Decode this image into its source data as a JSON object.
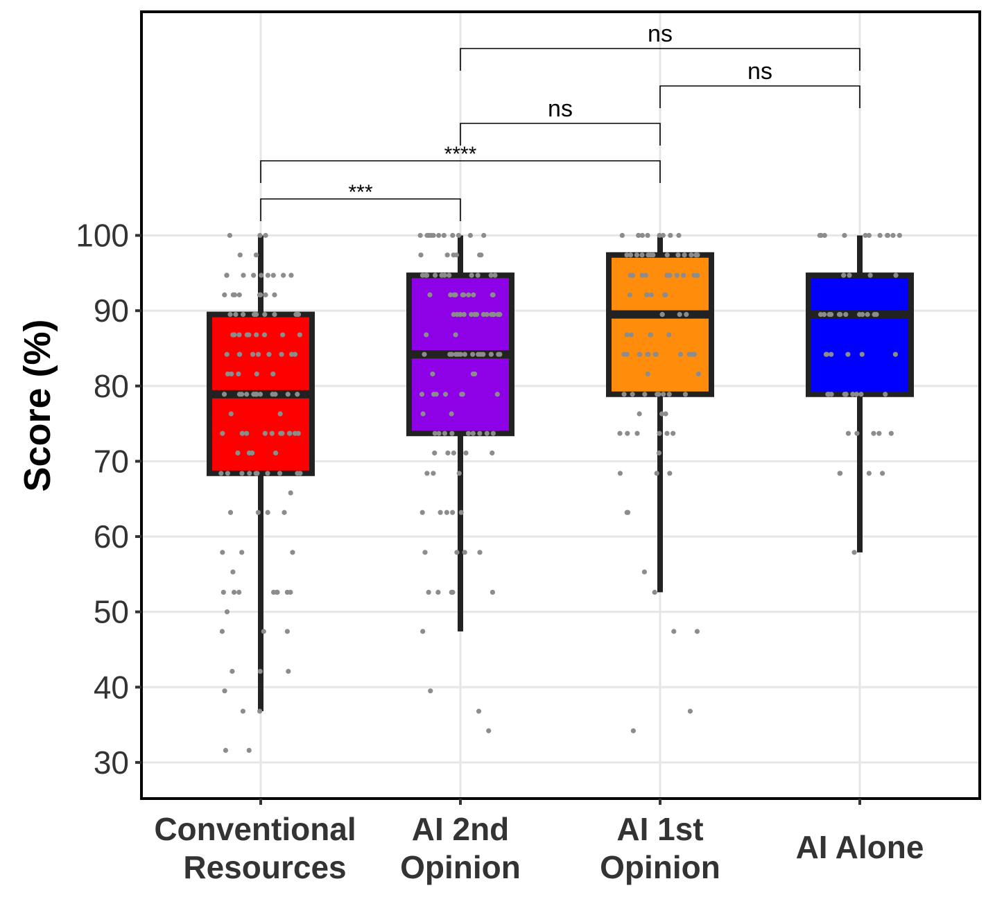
{
  "chart_data": {
    "type": "box",
    "title": "",
    "xlabel": "",
    "ylabel": "Score (%)",
    "ylim": [
      25.2,
      129.7
    ],
    "yticks": [
      30,
      40,
      50,
      60,
      70,
      80,
      90,
      100
    ],
    "grid": true,
    "legend": "none",
    "categories": [
      {
        "label_lines": [
          "Conventional",
          "Resources"
        ],
        "color": "#ff0000"
      },
      {
        "label_lines": [
          "AI 2nd",
          "Opinion"
        ],
        "color": "#8e00e6"
      },
      {
        "label_lines": [
          "AI 1st",
          "Opinion"
        ],
        "color": "#ff8c0a"
      },
      {
        "label_lines": [
          "AI Alone"
        ],
        "color": "#0000ff"
      }
    ],
    "boxes": [
      {
        "min": 36.8,
        "q1": 68.4,
        "median": 78.9,
        "q3": 89.5,
        "max": 100
      },
      {
        "min": 47.4,
        "q1": 73.7,
        "median": 84.2,
        "q3": 94.7,
        "max": 100
      },
      {
        "min": 52.6,
        "q1": 78.9,
        "median": 89.5,
        "q3": 97.4,
        "max": 100
      },
      {
        "min": 57.9,
        "q1": 78.9,
        "median": 89.5,
        "q3": 94.7,
        "max": 100
      }
    ],
    "points": [
      [
        [
          100,
          3
        ],
        [
          97.4,
          2
        ],
        [
          94.7,
          9
        ],
        [
          92.1,
          8
        ],
        [
          89.5,
          10
        ],
        [
          86.8,
          10
        ],
        [
          84.2,
          9
        ],
        [
          81.6,
          5
        ],
        [
          78.9,
          14
        ],
        [
          76.3,
          2
        ],
        [
          73.7,
          11
        ],
        [
          71.1,
          4
        ],
        [
          68.4,
          10
        ],
        [
          65.8,
          1
        ],
        [
          63.2,
          4
        ],
        [
          57.9,
          3
        ],
        [
          55.3,
          1
        ],
        [
          52.6,
          8
        ],
        [
          50,
          1
        ],
        [
          47.4,
          3
        ],
        [
          42.1,
          3
        ],
        [
          39.5,
          1
        ],
        [
          36.8,
          2
        ],
        [
          31.6,
          2
        ]
      ],
      [
        [
          100,
          11
        ],
        [
          97.4,
          6
        ],
        [
          94.7,
          12
        ],
        [
          92.1,
          10
        ],
        [
          89.5,
          15
        ],
        [
          86.8,
          2
        ],
        [
          84.2,
          14
        ],
        [
          81.6,
          3
        ],
        [
          78.9,
          7
        ],
        [
          76.3,
          2
        ],
        [
          73.7,
          9
        ],
        [
          71.1,
          5
        ],
        [
          68.4,
          3
        ],
        [
          63.2,
          5
        ],
        [
          57.9,
          4
        ],
        [
          52.6,
          5
        ],
        [
          47.4,
          1
        ],
        [
          39.5,
          1
        ],
        [
          36.8,
          1
        ],
        [
          34.2,
          1
        ]
      ],
      [
        [
          100,
          9
        ],
        [
          97.4,
          14
        ],
        [
          94.7,
          12
        ],
        [
          92.1,
          6
        ],
        [
          89.5,
          4
        ],
        [
          86.8,
          5
        ],
        [
          84.2,
          13
        ],
        [
          81.6,
          2
        ],
        [
          78.9,
          8
        ],
        [
          76.3,
          3
        ],
        [
          73.7,
          6
        ],
        [
          71.1,
          1
        ],
        [
          68.4,
          3
        ],
        [
          63.2,
          2
        ],
        [
          55.3,
          1
        ],
        [
          52.6,
          1
        ],
        [
          47.4,
          2
        ],
        [
          36.8,
          1
        ],
        [
          34.2,
          1
        ]
      ],
      [
        [
          100,
          11
        ],
        [
          94.7,
          4
        ],
        [
          89.5,
          12
        ],
        [
          84.2,
          6
        ],
        [
          78.9,
          10
        ],
        [
          73.7,
          5
        ],
        [
          68.4,
          4
        ],
        [
          57.9,
          1
        ]
      ]
    ],
    "point_color": "#8c8c8c",
    "comparisons": [
      {
        "from": 0,
        "to": 1,
        "label": "***"
      },
      {
        "from": 0,
        "to": 2,
        "label": "****"
      },
      {
        "from": 1,
        "to": 2,
        "label": "ns"
      },
      {
        "from": 2,
        "to": 3,
        "label": "ns"
      },
      {
        "from": 1,
        "to": 3,
        "label": "ns"
      }
    ]
  }
}
